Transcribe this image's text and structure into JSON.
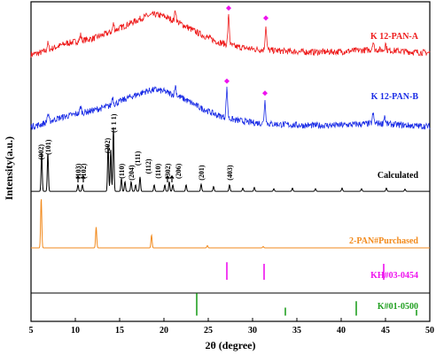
{
  "chart_data": {
    "type": "line",
    "xlabel": "2θ (degree)",
    "ylabel": "Intensity(a.u.)",
    "xlim": [
      5,
      50
    ],
    "xticks": [
      5,
      10,
      15,
      20,
      25,
      30,
      35,
      40,
      45,
      50
    ],
    "xtick_labels": [
      "5",
      "10",
      "15",
      "20",
      "25",
      "30",
      "35",
      "40",
      "45",
      "50"
    ],
    "grid": false,
    "series": [
      {
        "name": "K 12-PAN-A",
        "color": "#ee1c1c",
        "kind": "noisy",
        "base": 0.86,
        "x": [
          5,
          6,
          7,
          8,
          9,
          10,
          12,
          14,
          16,
          18,
          19,
          20,
          22,
          24,
          26,
          28,
          30,
          32,
          34,
          36,
          38,
          40,
          42,
          44,
          46,
          48,
          50
        ],
        "y": [
          0.835,
          0.84,
          0.85,
          0.86,
          0.87,
          0.875,
          0.885,
          0.905,
          0.93,
          0.955,
          0.96,
          0.955,
          0.93,
          0.9,
          0.875,
          0.86,
          0.852,
          0.848,
          0.845,
          0.843,
          0.843,
          0.844,
          0.848,
          0.85,
          0.847,
          0.843,
          0.84
        ],
        "peaks": [
          [
            6.9,
            0.02
          ],
          [
            10.6,
            0.018
          ],
          [
            14.3,
            0.022
          ],
          [
            21.3,
            0.035
          ],
          [
            27.3,
            0.09
          ],
          [
            31.5,
            0.075
          ],
          [
            43.6,
            0.025
          ],
          [
            45.0,
            0.02
          ]
        ],
        "markers": [
          27.3,
          31.5
        ]
      },
      {
        "name": "K 12-PAN-B",
        "color": "#1c2ee6",
        "kind": "noisy",
        "x": [
          5,
          6,
          7,
          8,
          9,
          10,
          12,
          14,
          16,
          18,
          19,
          20,
          22,
          24,
          26,
          28,
          30,
          32,
          34,
          36,
          38,
          40,
          42,
          44,
          46,
          48,
          50
        ],
        "y": [
          0.61,
          0.615,
          0.625,
          0.635,
          0.642,
          0.648,
          0.66,
          0.675,
          0.7,
          0.72,
          0.725,
          0.72,
          0.7,
          0.67,
          0.645,
          0.63,
          0.622,
          0.618,
          0.615,
          0.613,
          0.613,
          0.614,
          0.617,
          0.62,
          0.616,
          0.612,
          0.61
        ],
        "peaks": [
          [
            6.9,
            0.025
          ],
          [
            10.6,
            0.02
          ],
          [
            14.2,
            0.025
          ],
          [
            21.3,
            0.03
          ],
          [
            27.1,
            0.09
          ],
          [
            31.4,
            0.07
          ],
          [
            43.6,
            0.03
          ],
          [
            44.9,
            0.025
          ]
        ],
        "markers": [
          27.1,
          31.4
        ]
      },
      {
        "name": "Calculated",
        "color": "#000000",
        "kind": "stick",
        "base": 0.407,
        "peaks": [
          [
            6.2,
            0.12
          ],
          [
            6.9,
            0.12
          ],
          [
            10.3,
            0.02
          ],
          [
            10.8,
            0.02
          ],
          [
            13.7,
            0.145
          ],
          [
            14.0,
            0.13
          ],
          [
            14.3,
            0.2
          ],
          [
            15.2,
            0.04
          ],
          [
            15.6,
            0.03
          ],
          [
            16.3,
            0.03
          ],
          [
            16.8,
            0.02
          ],
          [
            17.3,
            0.045
          ],
          [
            18.9,
            0.02
          ],
          [
            20.1,
            0.02
          ],
          [
            20.6,
            0.03
          ],
          [
            21.0,
            0.02
          ],
          [
            22.5,
            0.02
          ],
          [
            24.2,
            0.022
          ],
          [
            25.6,
            0.015
          ],
          [
            27.4,
            0.02
          ],
          [
            28.9,
            0.01
          ],
          [
            30.2,
            0.012
          ],
          [
            32.4,
            0.008
          ],
          [
            34.5,
            0.01
          ],
          [
            37.1,
            0.008
          ],
          [
            40.1,
            0.01
          ],
          [
            42.3,
            0.008
          ],
          [
            45.1,
            0.01
          ],
          [
            47.2,
            0.007
          ]
        ]
      },
      {
        "name": "2-PAN#Purchased",
        "color": "#f28a1c",
        "kind": "stick",
        "base": 0.23,
        "peaks": [
          [
            6.15,
            0.155
          ],
          [
            12.35,
            0.065
          ],
          [
            18.6,
            0.04
          ],
          [
            24.9,
            0.007
          ],
          [
            31.2,
            0.004
          ]
        ]
      },
      {
        "name": "KH#03-0454",
        "color": "#ee11ee",
        "kind": "bars",
        "base": 0.13,
        "peaks": [
          [
            27.1,
            0.055
          ],
          [
            31.3,
            0.05
          ],
          [
            44.8,
            0.05
          ]
        ]
      },
      {
        "name": "K#01-0500",
        "color": "#22a022",
        "kind": "bars",
        "base": 0.018,
        "peaks": [
          [
            23.7,
            0.07
          ],
          [
            33.7,
            0.025
          ],
          [
            41.7,
            0.045
          ],
          [
            48.5,
            0.018
          ]
        ]
      }
    ],
    "peak_labels": [
      {
        "text": "(002)",
        "x": 6.1
      },
      {
        "text": "(101)",
        "x": 6.9
      },
      {
        "text": "(103)",
        "x": 10.3
      },
      {
        "text": "(102)",
        "x": 10.9
      },
      {
        "text": "(202)",
        "x": 13.6
      },
      {
        "text": "(1 1 1)",
        "x": 14.3
      },
      {
        "text": "(110)",
        "x": 15.2
      },
      {
        "text": "(204)",
        "x": 16.3
      },
      {
        "text": "(111)",
        "x": 17.0
      },
      {
        "text": "(112)",
        "x": 18.2
      },
      {
        "text": "(110)",
        "x": 19.3
      },
      {
        "text": "(302)",
        "x": 20.4
      },
      {
        "text": "(206)",
        "x": 21.6
      },
      {
        "text": "(201)",
        "x": 24.2
      },
      {
        "text": "(403)",
        "x": 27.4
      }
    ]
  }
}
